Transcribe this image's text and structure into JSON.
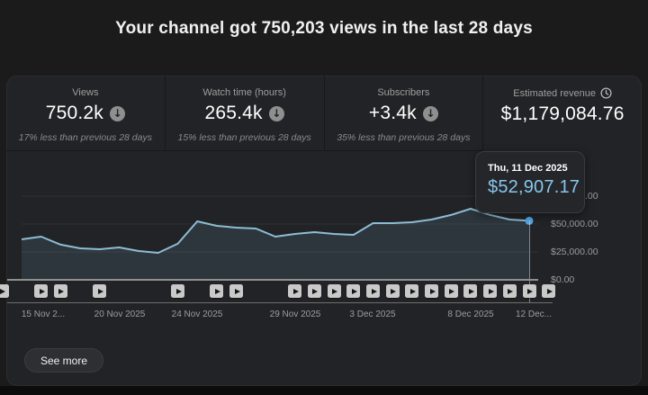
{
  "header": {
    "title": "Your channel got 750,203 views in the last 28 days"
  },
  "metrics": [
    {
      "label": "Views",
      "value": "750.2k",
      "trend_icon": "arrow-down-circle",
      "comparison": "17% less than previous 28 days",
      "selected": false
    },
    {
      "label": "Watch time (hours)",
      "value": "265.4k",
      "trend_icon": "arrow-down-circle",
      "comparison": "15% less than previous 28 days",
      "selected": false
    },
    {
      "label": "Subscribers",
      "value": "+3.4k",
      "trend_icon": "arrow-down-circle",
      "comparison": "35% less than previous 28 days",
      "selected": false
    },
    {
      "label": "Estimated revenue",
      "value": "$1,179,084.76",
      "label_icon": "clock",
      "selected": true
    }
  ],
  "tooltip": {
    "date": "Thu, 11 Dec 2025",
    "value": "$52,907.17"
  },
  "see_more_label": "See more",
  "colors": {
    "line": "#8dbdd4",
    "area": "rgba(130,185,215,0.13)",
    "dot": "#54a8e6",
    "tooltip_value": "#86c6ec",
    "grid": "#2f3032"
  },
  "chart_data": {
    "type": "line",
    "title": "Estimated revenue",
    "unit": "USD",
    "x": [
      "15 Nov",
      "16 Nov",
      "17 Nov",
      "18 Nov",
      "19 Nov",
      "20 Nov",
      "21 Nov",
      "22 Nov",
      "23 Nov",
      "24 Nov",
      "25 Nov",
      "26 Nov",
      "27 Nov",
      "28 Nov",
      "29 Nov",
      "30 Nov",
      "1 Dec",
      "2 Dec",
      "3 Dec",
      "4 Dec",
      "5 Dec",
      "6 Dec",
      "7 Dec",
      "8 Dec",
      "9 Dec",
      "10 Dec",
      "11 Dec"
    ],
    "values": [
      36300,
      38700,
      31500,
      28200,
      27400,
      29000,
      25800,
      24200,
      32300,
      52400,
      48400,
      46800,
      46000,
      38700,
      41100,
      42700,
      41100,
      40300,
      50800,
      50800,
      51600,
      54000,
      58100,
      63700,
      58100,
      54000,
      52907.17
    ],
    "ylim": [
      0,
      101600
    ],
    "grid": true,
    "y_ticks": [
      {
        "value": 0,
        "label": "$0.00"
      },
      {
        "value": 25000,
        "label": "$25,000.00"
      },
      {
        "value": 50000,
        "label": "$50,000.00"
      },
      {
        "value": 75000,
        "label": "$75,000.00"
      }
    ],
    "x_tick_labels": [
      "15 Nov 2...",
      "20 Nov 2025",
      "24 Nov 2025",
      "29 Nov 2025",
      "3 Dec 2025",
      "8 Dec 2025",
      "12 Dec..."
    ],
    "x_axis_span_days": 28,
    "highlighted_point": {
      "date": "Thu, 11 Dec 2025",
      "value": 52907.17,
      "index": 26
    },
    "video_marker_days": [
      -1,
      1,
      2,
      4,
      8,
      10,
      11,
      14,
      15,
      16,
      17,
      18,
      19,
      20,
      21,
      22,
      23,
      24,
      25,
      26,
      27
    ]
  }
}
